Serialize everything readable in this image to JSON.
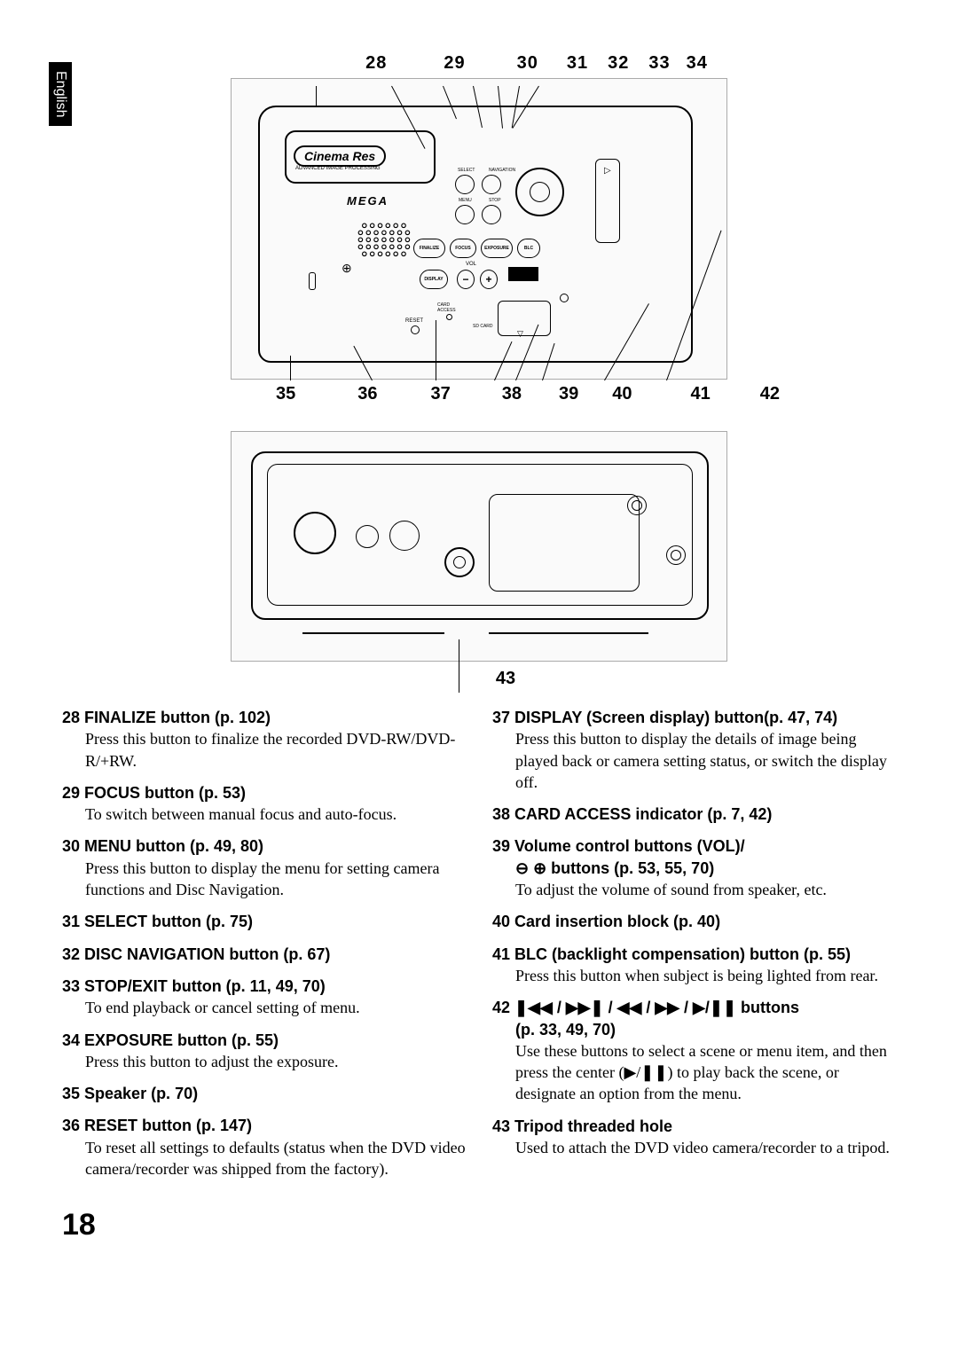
{
  "language_tab": "English",
  "page_number": "18",
  "diagram1": {
    "top_labels": [
      "28",
      "29",
      "30",
      "31",
      "32",
      "33",
      "34"
    ],
    "top_gaps": [
      0,
      64,
      58,
      32,
      22,
      22,
      18
    ],
    "bottom_labels": [
      "35",
      "36",
      "37",
      "38",
      "39",
      "40",
      "41",
      "42"
    ],
    "bottom_gaps": [
      0,
      70,
      60,
      58,
      42,
      38,
      66,
      56
    ],
    "cinema_label": "Cinema Res",
    "cinema_sub": "ADVANCED IMAGE PROCESSING",
    "mega_label": "MEGA",
    "buttons": {
      "finalize": "FINALIZE",
      "focus": "FOCUS",
      "exposure": "EXPOSURE",
      "blc": "BLC",
      "display": "DISPLAY",
      "vol": "VOL",
      "menu": "MENU",
      "stop": "STOP",
      "select": "SELECT",
      "navigation": "NAVIGATION",
      "reset": "RESET",
      "card_access": "CARD ACCESS",
      "sd_card": "SD CARD"
    }
  },
  "diagram2": {
    "label_43": "43"
  },
  "items_left": [
    {
      "n": "28",
      "title": "FINALIZE button (p. 102)",
      "desc": "Press this button to finalize the recorded DVD-RW/DVD-R/+RW."
    },
    {
      "n": "29",
      "title": "FOCUS button (p. 53)",
      "desc": "To switch between manual focus and auto-focus."
    },
    {
      "n": "30",
      "title": "MENU button (p. 49, 80)",
      "desc": "Press this button to display the menu for setting camera functions and Disc Navigation."
    },
    {
      "n": "31",
      "title": "SELECT button (p. 75)",
      "desc": ""
    },
    {
      "n": "32",
      "title": "DISC NAVIGATION button (p. 67)",
      "desc": ""
    },
    {
      "n": "33",
      "title": "STOP/EXIT button (p. 11, 49, 70)",
      "desc": "To end playback or cancel setting of menu."
    },
    {
      "n": "34",
      "title": "EXPOSURE button (p. 55)",
      "desc": "Press this button to adjust the exposure."
    },
    {
      "n": "35",
      "title": "Speaker (p. 70)",
      "desc": ""
    },
    {
      "n": "36",
      "title": "RESET button (p. 147)",
      "desc": "To reset all settings to defaults (status when the DVD video camera/recorder was shipped from the factory)."
    }
  ],
  "items_right": [
    {
      "n": "37",
      "title": "DISPLAY (Screen display) button(p. 47, 74)",
      "desc": "Press this button to display the details of image being played back or camera setting status, or switch the display off."
    },
    {
      "n": "38",
      "title": "CARD ACCESS indicator (p. 7, 42)",
      "desc": ""
    },
    {
      "n": "39",
      "title": "Volume control buttons (VOL)/",
      "title2": "⊖ ⊕ buttons (p. 53, 55, 70)",
      "desc": "To adjust the volume of sound from speaker, etc."
    },
    {
      "n": "40",
      "title": "Card insertion block (p. 40)",
      "desc": ""
    },
    {
      "n": "41",
      "title": "BLC (backlight compensation) button (p. 55)",
      "desc": "Press this button when subject is being lighted from rear."
    },
    {
      "n": "42",
      "title_special": "playback_buttons",
      "title2": "(p. 33, 49, 70)",
      "desc": "Use these buttons to select a scene or menu item, and then press the center (▶/❚❚) to play back the scene, or designate an option from the menu."
    },
    {
      "n": "43",
      "title": "Tripod threaded hole",
      "desc": "Used to attach the DVD video camera/recorder to a tripod."
    }
  ],
  "playback_icons": {
    "prev": "❚◀◀",
    "next": "▶▶❚",
    "rew": "◀◀",
    "ff": "▶▶",
    "playpause": "▶/❚❚",
    "suffix": " buttons"
  }
}
